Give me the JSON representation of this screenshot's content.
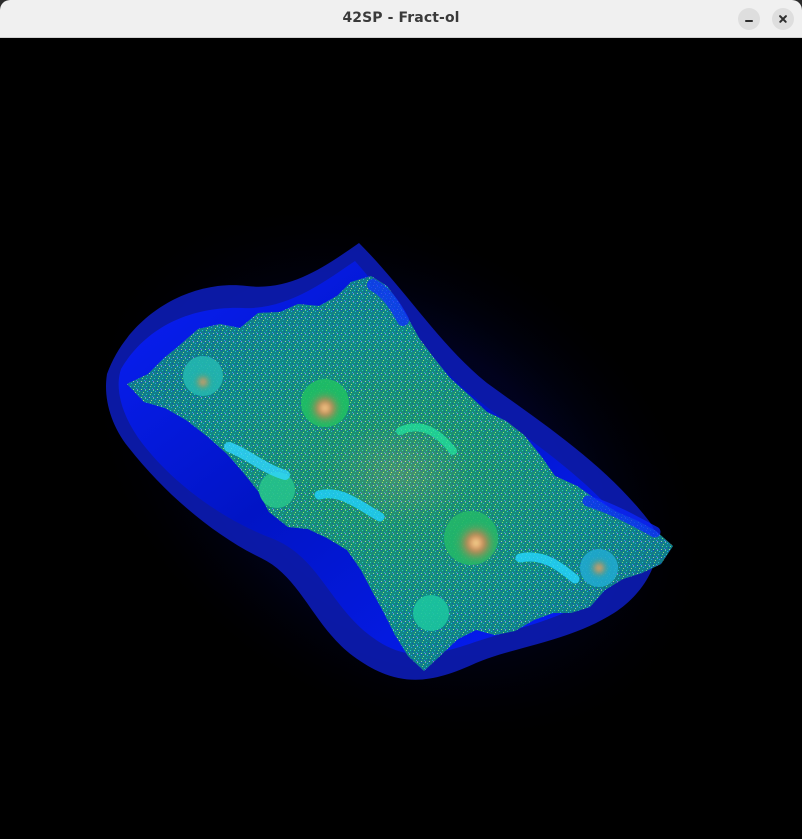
{
  "window": {
    "title": "42SP - Fract-ol"
  },
  "controls": {
    "minimize_icon": "minimize-icon",
    "close_icon": "close-icon"
  },
  "colors": {
    "titlebar": "#f0f0f0",
    "background": "#000000",
    "halo_dark": "#00001a",
    "blue": "#0b1cff",
    "cyan": "#22d0ff",
    "green": "#20c06a",
    "core": "#f7d36a"
  }
}
